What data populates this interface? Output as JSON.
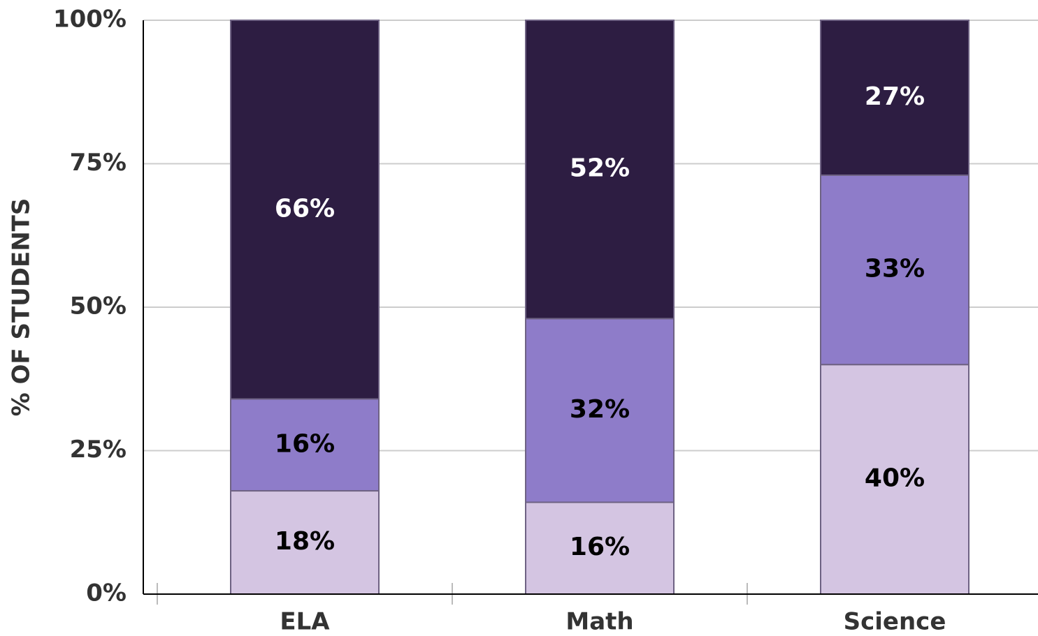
{
  "chart_data": {
    "type": "stacked_bar",
    "y_label": "% OF STUDENTS",
    "categories": [
      "ELA",
      "Math",
      "Science"
    ],
    "series": [
      {
        "color": "#d4c5e2",
        "label_color": "#000000",
        "values": [
          18,
          16,
          40
        ],
        "value_labels": [
          "18%",
          "16%",
          "40%"
        ]
      },
      {
        "color": "#8e7cc9",
        "label_color": "#000000",
        "values": [
          16,
          32,
          33
        ],
        "value_labels": [
          "16%",
          "32%",
          "33%"
        ]
      },
      {
        "color": "#2d1d42",
        "label_color": "#ffffff",
        "values": [
          66,
          52,
          27
        ],
        "value_labels": [
          "66%",
          "52%",
          "27%"
        ]
      }
    ],
    "ylim": [
      0,
      100
    ],
    "yticks": [
      {
        "value": 0,
        "label": "0%"
      },
      {
        "value": 25,
        "label": "25%"
      },
      {
        "value": 50,
        "label": "50%"
      },
      {
        "value": 75,
        "label": "75%"
      },
      {
        "value": 100,
        "label": "100%"
      }
    ],
    "grid": true
  }
}
